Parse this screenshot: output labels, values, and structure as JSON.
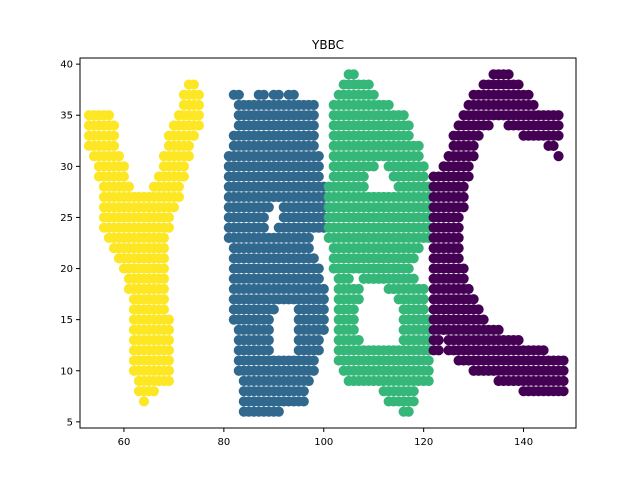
{
  "chart_data": {
    "type": "scatter",
    "title": "YBBC",
    "xlabel": "",
    "ylabel": "",
    "xlim": [
      51.2,
      150.5
    ],
    "ylim": [
      4.4,
      40.6
    ],
    "xticks": [
      60,
      80,
      100,
      120,
      140
    ],
    "yticks": [
      5,
      10,
      15,
      20,
      25,
      30,
      35,
      40
    ],
    "grid": false,
    "legend": "none",
    "series": [
      {
        "color": "#fde725",
        "runs": [
          [
            38,
            73,
            74
          ],
          [
            37,
            72,
            75
          ],
          [
            36,
            72,
            75
          ],
          [
            35,
            53,
            57,
            71,
            75
          ],
          [
            34,
            53,
            58,
            70,
            75
          ],
          [
            33,
            53,
            58,
            69,
            74
          ],
          [
            32,
            53,
            58,
            69,
            73
          ],
          [
            31,
            54,
            59,
            68,
            73
          ],
          [
            30,
            55,
            60,
            68,
            72
          ],
          [
            29,
            55,
            60,
            67,
            72
          ],
          [
            28,
            56,
            61,
            66,
            71
          ],
          [
            27,
            56,
            71
          ],
          [
            26,
            56,
            70
          ],
          [
            25,
            56,
            69
          ],
          [
            24,
            56,
            69
          ],
          [
            23,
            57,
            68
          ],
          [
            22,
            58,
            68
          ],
          [
            21,
            59,
            68
          ],
          [
            20,
            60,
            68
          ],
          [
            19,
            61,
            68
          ],
          [
            18,
            61,
            68
          ],
          [
            17,
            62,
            68
          ],
          [
            16,
            62,
            68
          ],
          [
            15,
            62,
            69
          ],
          [
            14,
            62,
            69
          ],
          [
            13,
            62,
            69
          ],
          [
            12,
            62,
            69
          ],
          [
            11,
            62,
            69
          ],
          [
            10,
            62,
            69
          ],
          [
            9,
            63,
            69
          ],
          [
            8,
            63,
            66
          ],
          [
            7,
            64,
            64
          ]
        ]
      },
      {
        "color": "#31688e",
        "runs": [
          [
            37,
            82,
            83,
            87,
            88,
            90,
            91,
            93,
            94
          ],
          [
            36,
            83,
            98
          ],
          [
            35,
            83,
            98
          ],
          [
            34,
            83,
            98
          ],
          [
            33,
            82,
            98
          ],
          [
            32,
            82,
            98
          ],
          [
            31,
            81,
            99
          ],
          [
            30,
            81,
            99
          ],
          [
            29,
            81,
            99
          ],
          [
            28,
            81,
            100
          ],
          [
            27,
            81,
            100
          ],
          [
            26,
            81,
            89,
            92,
            100
          ],
          [
            25,
            81,
            88,
            92,
            100
          ],
          [
            24,
            81,
            88,
            91,
            100
          ],
          [
            23,
            81,
            97
          ],
          [
            22,
            82,
            97
          ],
          [
            21,
            82,
            98
          ],
          [
            20,
            82,
            99
          ],
          [
            19,
            82,
            99
          ],
          [
            18,
            82,
            100
          ],
          [
            17,
            82,
            100
          ],
          [
            16,
            82,
            90,
            95,
            100
          ],
          [
            15,
            82,
            89,
            95,
            100
          ],
          [
            14,
            83,
            89,
            95,
            100
          ],
          [
            13,
            83,
            89,
            95,
            99
          ],
          [
            12,
            83,
            89,
            95,
            99
          ],
          [
            11,
            83,
            98
          ],
          [
            10,
            83,
            98
          ],
          [
            9,
            84,
            97
          ],
          [
            8,
            84,
            96
          ],
          [
            7,
            84,
            96
          ],
          [
            6,
            84,
            91
          ]
        ]
      },
      {
        "color": "#35b779",
        "runs": [
          [
            39,
            105,
            106
          ],
          [
            38,
            104,
            109
          ],
          [
            37,
            103,
            110
          ],
          [
            36,
            102,
            113
          ],
          [
            35,
            102,
            116
          ],
          [
            34,
            102,
            117
          ],
          [
            33,
            102,
            117
          ],
          [
            32,
            102,
            119
          ],
          [
            31,
            102,
            119
          ],
          [
            30,
            102,
            110,
            113,
            120
          ],
          [
            29,
            102,
            108,
            114,
            120
          ],
          [
            28,
            101,
            108,
            115,
            121
          ],
          [
            27,
            101,
            121
          ],
          [
            26,
            101,
            121
          ],
          [
            25,
            101,
            121
          ],
          [
            24,
            101,
            121
          ],
          [
            23,
            101,
            121
          ],
          [
            22,
            102,
            119
          ],
          [
            21,
            102,
            118
          ],
          [
            20,
            102,
            117
          ],
          [
            19,
            103,
            105,
            108,
            118
          ],
          [
            18,
            103,
            107,
            113,
            120
          ],
          [
            17,
            103,
            107,
            115,
            120
          ],
          [
            16,
            103,
            106,
            116,
            120
          ],
          [
            15,
            103,
            106,
            116,
            121
          ],
          [
            14,
            103,
            106,
            116,
            121
          ],
          [
            13,
            103,
            107,
            116,
            121
          ],
          [
            12,
            103,
            121
          ],
          [
            11,
            103,
            121
          ],
          [
            10,
            104,
            121
          ],
          [
            9,
            105,
            121
          ],
          [
            8,
            112,
            118
          ],
          [
            7,
            113,
            118
          ],
          [
            6,
            116,
            117
          ]
        ]
      },
      {
        "color": "#440154",
        "runs": [
          [
            39,
            134,
            137
          ],
          [
            38,
            132,
            139
          ],
          [
            37,
            130,
            141
          ],
          [
            36,
            129,
            142
          ],
          [
            35,
            128,
            147
          ],
          [
            34,
            127,
            133,
            137,
            147
          ],
          [
            33,
            126,
            131,
            140,
            147
          ],
          [
            32,
            126,
            130,
            145,
            146
          ],
          [
            31,
            125,
            130,
            147,
            147
          ],
          [
            30,
            124,
            129
          ],
          [
            29,
            122,
            129
          ],
          [
            28,
            122,
            128
          ],
          [
            27,
            122,
            128
          ],
          [
            26,
            122,
            128
          ],
          [
            25,
            122,
            127
          ],
          [
            24,
            122,
            127
          ],
          [
            23,
            122,
            127
          ],
          [
            22,
            122,
            127
          ],
          [
            21,
            122,
            127
          ],
          [
            20,
            122,
            128
          ],
          [
            19,
            122,
            128
          ],
          [
            18,
            122,
            129
          ],
          [
            17,
            122,
            130
          ],
          [
            16,
            122,
            131
          ],
          [
            15,
            122,
            132
          ],
          [
            14,
            122,
            135
          ],
          [
            13,
            122,
            123,
            125,
            139
          ],
          [
            12,
            122,
            123,
            125,
            144
          ],
          [
            11,
            127,
            148
          ],
          [
            10,
            130,
            148
          ],
          [
            9,
            135,
            148
          ],
          [
            8,
            140,
            148
          ]
        ]
      }
    ]
  }
}
